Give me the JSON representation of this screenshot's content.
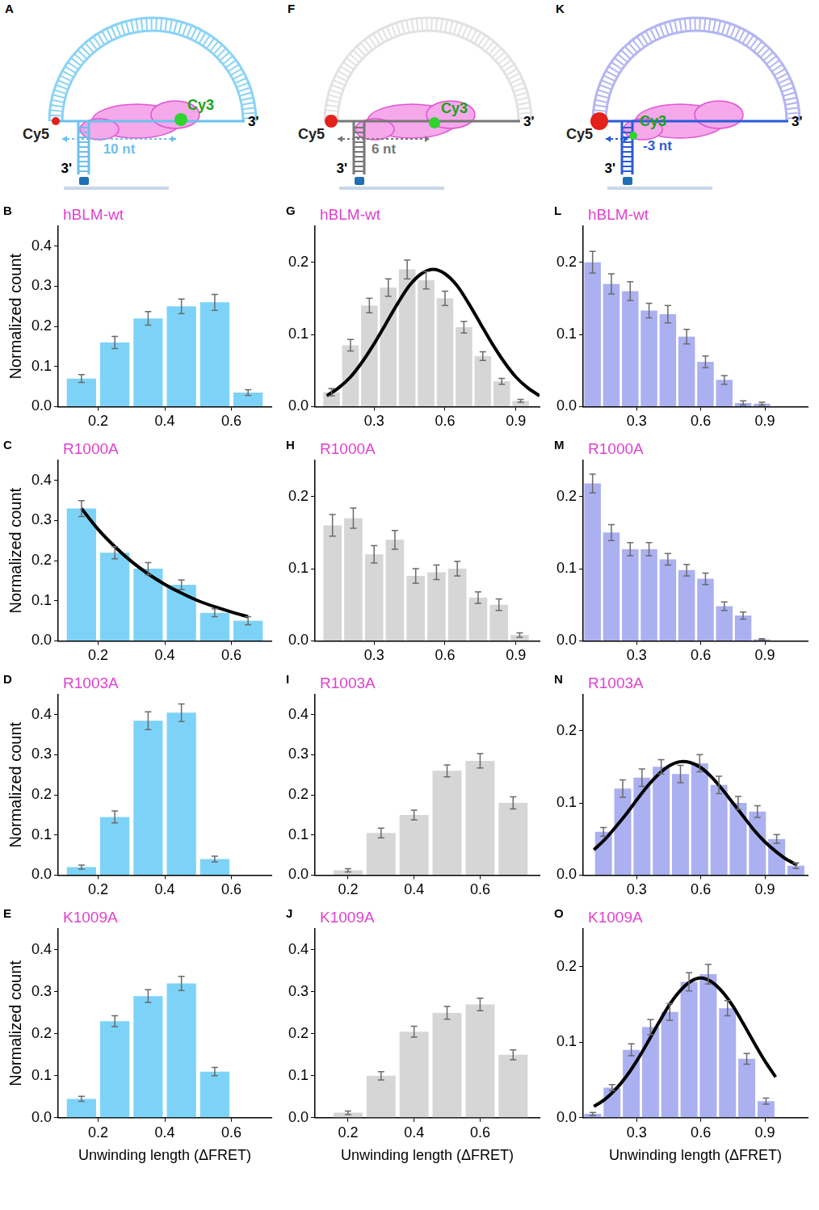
{
  "diagrams": [
    {
      "panel": "A",
      "colors": [
        "#8ad3f5",
        "#6cc0ec"
      ],
      "acceptor": "Cy5",
      "donor": "Cy3",
      "distance": "10 nt",
      "ends": [
        "3'",
        "3'"
      ]
    },
    {
      "panel": "F",
      "colors": [
        "#e2e2e2",
        "#777777"
      ],
      "acceptor": "Cy5",
      "donor": "Cy3",
      "distance": "6 nt",
      "ends": [
        "3'",
        "3'"
      ]
    },
    {
      "panel": "K",
      "colors": [
        "#b3b5f2",
        "#2a5bd7"
      ],
      "acceptor": "Cy5",
      "donor": "Cy3",
      "distance": "-3 nt",
      "ends": [
        "3'",
        "3'"
      ]
    }
  ],
  "chart_data": [
    {
      "panel": "B",
      "type": "bar",
      "title": "hBLM-wt",
      "ylabel": "Normalized count",
      "color": "#7dd3f7",
      "grid": false,
      "bins": [
        0.1,
        0.2,
        0.3,
        0.4,
        0.5,
        0.6,
        0.7
      ],
      "values": [
        0.07,
        0.16,
        0.22,
        0.25,
        0.26,
        0.035
      ],
      "errors": [
        0.01,
        0.015,
        0.017,
        0.018,
        0.02,
        0.007
      ],
      "xlim": [
        0.08,
        0.72
      ],
      "xticks": [
        0.2,
        0.4,
        0.6
      ],
      "ylim": [
        0,
        0.45
      ],
      "yticks": [
        {
          "value": 0,
          "label": "0.0"
        },
        0.1,
        0.2,
        0.3,
        0.4
      ]
    },
    {
      "panel": "C",
      "type": "bar",
      "title": "R1000A",
      "ylabel": "Normalized count",
      "color": "#7dd3f7",
      "grid": false,
      "bins": [
        0.1,
        0.2,
        0.3,
        0.4,
        0.5,
        0.6,
        0.7
      ],
      "values": [
        0.33,
        0.22,
        0.18,
        0.14,
        0.07,
        0.05
      ],
      "errors": [
        0.02,
        0.015,
        0.015,
        0.012,
        0.01,
        0.01
      ],
      "fit": {
        "x": [
          0.15,
          0.2,
          0.25,
          0.3,
          0.35,
          0.4,
          0.45,
          0.5,
          0.55,
          0.6,
          0.65
        ],
        "y": [
          0.33,
          0.278,
          0.235,
          0.198,
          0.167,
          0.141,
          0.119,
          0.1,
          0.085,
          0.072,
          0.06
        ]
      },
      "xlim": [
        0.08,
        0.72
      ],
      "xticks": [
        0.2,
        0.4,
        0.6
      ],
      "ylim": [
        0,
        0.45
      ],
      "yticks": [
        {
          "value": 0,
          "label": "0.0"
        },
        0.1,
        0.2,
        0.3,
        0.4
      ]
    },
    {
      "panel": "D",
      "type": "bar",
      "title": "R1003A",
      "ylabel": "Normalized count",
      "color": "#7dd3f7",
      "grid": false,
      "bins": [
        0.1,
        0.2,
        0.3,
        0.4,
        0.5,
        0.6
      ],
      "values": [
        0.02,
        0.145,
        0.385,
        0.405,
        0.04
      ],
      "errors": [
        0.005,
        0.015,
        0.022,
        0.022,
        0.007
      ],
      "xlim": [
        0.08,
        0.72
      ],
      "xticks": [
        0.2,
        0.4,
        0.6
      ],
      "ylim": [
        0,
        0.45
      ],
      "yticks": [
        {
          "value": 0,
          "label": "0.0"
        },
        0.1,
        0.2,
        0.3,
        0.4
      ]
    },
    {
      "panel": "E",
      "type": "bar",
      "title": "K1009A",
      "ylabel": "Normalized count",
      "xlabel": "Unwinding length (ΔFRET)",
      "color": "#7dd3f7",
      "grid": false,
      "bins": [
        0.1,
        0.2,
        0.3,
        0.4,
        0.5,
        0.6
      ],
      "values": [
        0.045,
        0.23,
        0.29,
        0.32,
        0.11
      ],
      "errors": [
        0.006,
        0.013,
        0.015,
        0.017,
        0.01
      ],
      "xlim": [
        0.08,
        0.72
      ],
      "xticks": [
        0.2,
        0.4,
        0.6
      ],
      "ylim": [
        0,
        0.45
      ],
      "yticks": [
        {
          "value": 0,
          "label": "0.0"
        },
        0.1,
        0.2,
        0.3,
        0.4
      ]
    },
    {
      "panel": "G",
      "type": "bar",
      "title": "hBLM-wt",
      "color": "#d6d6d6",
      "grid": false,
      "bins": [
        0.08,
        0.16,
        0.24,
        0.32,
        0.4,
        0.48,
        0.56,
        0.64,
        0.72,
        0.8,
        0.88,
        0.96
      ],
      "values": [
        0.02,
        0.085,
        0.14,
        0.165,
        0.19,
        0.175,
        0.15,
        0.11,
        0.07,
        0.035,
        0.008
      ],
      "errors": [
        0.005,
        0.008,
        0.01,
        0.012,
        0.013,
        0.012,
        0.01,
        0.008,
        0.006,
        0.004,
        0.002
      ],
      "fit": {
        "x": [
          0.1,
          0.15,
          0.2,
          0.25,
          0.3,
          0.35,
          0.4,
          0.45,
          0.5,
          0.55,
          0.6,
          0.65,
          0.7,
          0.75,
          0.8,
          0.85,
          0.9,
          0.95,
          1.0
        ],
        "y": [
          0.015,
          0.026,
          0.041,
          0.062,
          0.087,
          0.115,
          0.143,
          0.168,
          0.184,
          0.19,
          0.184,
          0.168,
          0.143,
          0.115,
          0.087,
          0.062,
          0.041,
          0.026,
          0.015
        ]
      },
      "xlim": [
        0.05,
        1.0
      ],
      "xticks": [
        0.3,
        0.6,
        0.9
      ],
      "ylim": [
        0,
        0.25
      ],
      "yticks": [
        {
          "value": 0,
          "label": "0.0"
        },
        0.1,
        0.2
      ]
    },
    {
      "panel": "H",
      "type": "bar",
      "title": "R1000A",
      "color": "#d6d6d6",
      "grid": false,
      "bins": [
        0.08,
        0.168,
        0.256,
        0.344,
        0.432,
        0.52,
        0.608,
        0.696,
        0.784,
        0.872,
        0.96
      ],
      "values": [
        0.16,
        0.17,
        0.12,
        0.14,
        0.09,
        0.095,
        0.1,
        0.06,
        0.05,
        0.008
      ],
      "errors": [
        0.015,
        0.014,
        0.012,
        0.013,
        0.01,
        0.01,
        0.01,
        0.008,
        0.008,
        0.003
      ],
      "xlim": [
        0.05,
        1.0
      ],
      "xticks": [
        0.3,
        0.6,
        0.9
      ],
      "ylim": [
        0,
        0.25
      ],
      "yticks": [
        {
          "value": 0,
          "label": "0.0"
        },
        0.1,
        0.2
      ]
    },
    {
      "panel": "I",
      "type": "bar",
      "title": "R1003A",
      "color": "#d6d6d6",
      "grid": false,
      "bins": [
        0.15,
        0.25,
        0.35,
        0.45,
        0.55,
        0.65,
        0.75
      ],
      "values": [
        0.012,
        0.105,
        0.15,
        0.26,
        0.285,
        0.18
      ],
      "errors": [
        0.004,
        0.012,
        0.012,
        0.015,
        0.018,
        0.015
      ],
      "xlim": [
        0.1,
        0.78
      ],
      "xticks": [
        0.2,
        0.4,
        0.6
      ],
      "ylim": [
        0,
        0.45
      ],
      "yticks": [
        {
          "value": 0,
          "label": "0.0"
        },
        0.1,
        0.2,
        0.3,
        0.4
      ]
    },
    {
      "panel": "J",
      "type": "bar",
      "title": "K1009A",
      "xlabel": "Unwinding length (ΔFRET)",
      "color": "#d6d6d6",
      "grid": false,
      "bins": [
        0.15,
        0.25,
        0.35,
        0.45,
        0.55,
        0.65,
        0.75
      ],
      "values": [
        0.012,
        0.1,
        0.205,
        0.25,
        0.27,
        0.15
      ],
      "errors": [
        0.004,
        0.01,
        0.013,
        0.015,
        0.015,
        0.012
      ],
      "xlim": [
        0.1,
        0.78
      ],
      "xticks": [
        0.2,
        0.4,
        0.6
      ],
      "ylim": [
        0,
        0.45
      ],
      "yticks": [
        {
          "value": 0,
          "label": "0.0"
        },
        0.1,
        0.2,
        0.3,
        0.4
      ]
    },
    {
      "panel": "L",
      "type": "bar",
      "title": "hBLM-wt",
      "color": "#aab0f0",
      "grid": false,
      "bins": [
        0.05,
        0.138,
        0.226,
        0.314,
        0.402,
        0.49,
        0.578,
        0.666,
        0.754,
        0.842,
        0.93
      ],
      "values": [
        0.2,
        0.17,
        0.16,
        0.133,
        0.128,
        0.097,
        0.062,
        0.037,
        0.005,
        0.004
      ],
      "errors": [
        0.015,
        0.014,
        0.013,
        0.01,
        0.012,
        0.01,
        0.008,
        0.006,
        0.003,
        0.002
      ],
      "xlim": [
        0.05,
        1.1
      ],
      "xticks": [
        0.3,
        0.6,
        0.9
      ],
      "ylim": [
        0,
        0.25
      ],
      "yticks": [
        {
          "value": 0,
          "label": "0.0"
        },
        0.1,
        0.2
      ]
    },
    {
      "panel": "M",
      "type": "bar",
      "title": "R1000A",
      "color": "#aab0f0",
      "grid": false,
      "bins": [
        0.05,
        0.138,
        0.226,
        0.314,
        0.402,
        0.49,
        0.578,
        0.666,
        0.754,
        0.842,
        0.93
      ],
      "values": [
        0.218,
        0.15,
        0.127,
        0.127,
        0.113,
        0.098,
        0.086,
        0.048,
        0.035,
        0.002
      ],
      "errors": [
        0.013,
        0.011,
        0.009,
        0.009,
        0.008,
        0.008,
        0.008,
        0.006,
        0.005,
        0.001
      ],
      "xlim": [
        0.05,
        1.1
      ],
      "xticks": [
        0.3,
        0.6,
        0.9
      ],
      "ylim": [
        0,
        0.25
      ],
      "yticks": [
        {
          "value": 0,
          "label": "0.0"
        },
        0.1,
        0.2
      ]
    },
    {
      "panel": "N",
      "type": "bar",
      "title": "R1003A",
      "color": "#aab0f0",
      "grid": false,
      "bins": [
        0.1,
        0.19,
        0.28,
        0.37,
        0.46,
        0.55,
        0.64,
        0.73,
        0.82,
        0.91,
        1.0,
        1.09
      ],
      "values": [
        0.06,
        0.12,
        0.135,
        0.15,
        0.14,
        0.155,
        0.125,
        0.1,
        0.088,
        0.05,
        0.013
      ],
      "errors": [
        0.006,
        0.012,
        0.012,
        0.01,
        0.012,
        0.012,
        0.012,
        0.009,
        0.008,
        0.006,
        0.004
      ],
      "fit": {
        "x": [
          0.1,
          0.15,
          0.2,
          0.25,
          0.3,
          0.35,
          0.4,
          0.45,
          0.5,
          0.55,
          0.6,
          0.65,
          0.7,
          0.75,
          0.8,
          0.85,
          0.9,
          0.95,
          1.0,
          1.05
        ],
        "y": [
          0.035,
          0.049,
          0.066,
          0.084,
          0.104,
          0.123,
          0.139,
          0.151,
          0.157,
          0.156,
          0.149,
          0.136,
          0.119,
          0.1,
          0.081,
          0.062,
          0.046,
          0.033,
          0.022,
          0.014
        ]
      },
      "xlim": [
        0.05,
        1.1
      ],
      "xticks": [
        0.3,
        0.6,
        0.9
      ],
      "ylim": [
        0,
        0.25
      ],
      "yticks": [
        {
          "value": 0,
          "label": "0.0"
        },
        0.1,
        0.2
      ]
    },
    {
      "panel": "O",
      "type": "bar",
      "title": "K1009A",
      "xlabel": "Unwinding length (ΔFRET)",
      "color": "#aab0f0",
      "grid": false,
      "bins": [
        0.05,
        0.14,
        0.23,
        0.32,
        0.41,
        0.5,
        0.59,
        0.68,
        0.77,
        0.86,
        0.95
      ],
      "values": [
        0.005,
        0.04,
        0.09,
        0.12,
        0.14,
        0.18,
        0.19,
        0.145,
        0.078,
        0.022
      ],
      "errors": [
        0.002,
        0.004,
        0.008,
        0.01,
        0.011,
        0.012,
        0.013,
        0.01,
        0.007,
        0.004
      ],
      "fit": {
        "x": [
          0.1,
          0.15,
          0.2,
          0.25,
          0.3,
          0.35,
          0.4,
          0.45,
          0.5,
          0.55,
          0.6,
          0.65,
          0.7,
          0.75,
          0.8,
          0.85,
          0.9,
          0.95
        ],
        "y": [
          0.015,
          0.024,
          0.037,
          0.054,
          0.075,
          0.099,
          0.124,
          0.148,
          0.167,
          0.18,
          0.185,
          0.18,
          0.167,
          0.148,
          0.124,
          0.099,
          0.075,
          0.054
        ]
      },
      "xlim": [
        0.05,
        1.1
      ],
      "xticks": [
        0.3,
        0.6,
        0.9
      ],
      "ylim": [
        0,
        0.25
      ],
      "yticks": [
        {
          "value": 0,
          "label": "0.0"
        },
        0.1,
        0.2
      ]
    }
  ]
}
